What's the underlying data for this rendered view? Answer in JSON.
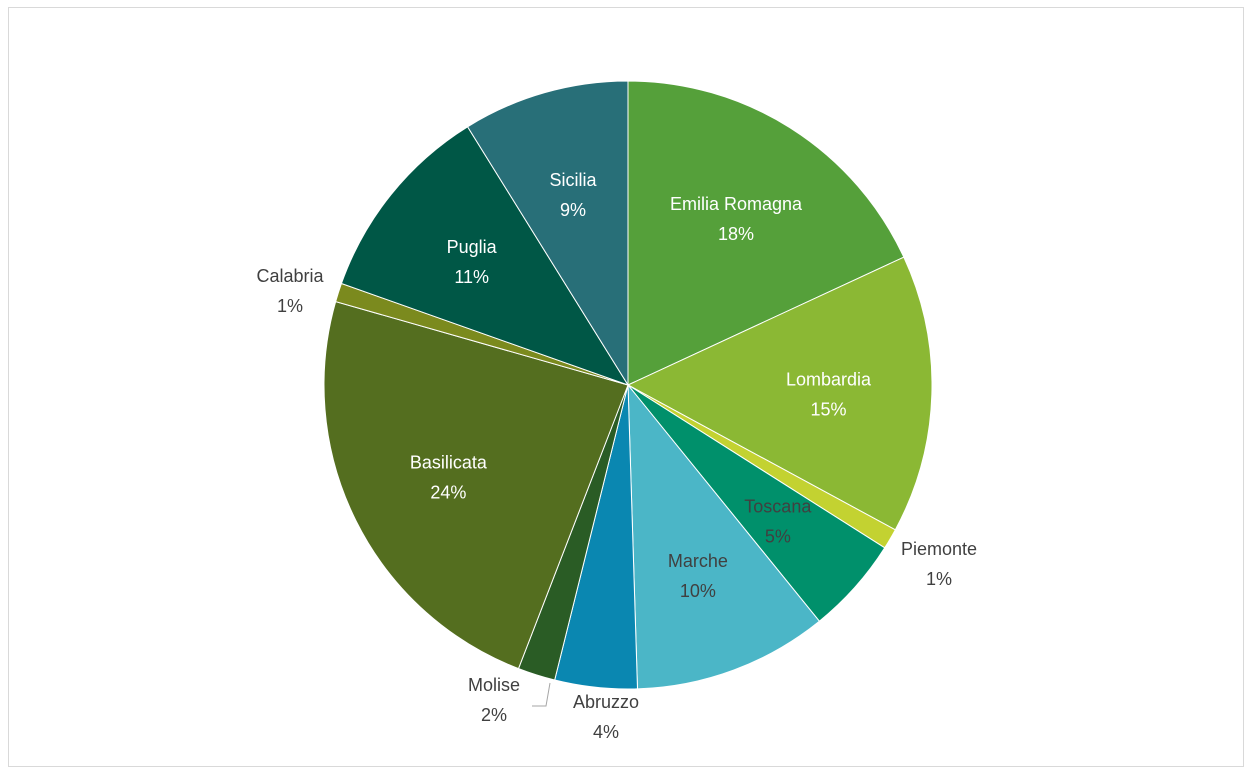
{
  "chart_data": {
    "type": "pie",
    "title": "",
    "start_angle_deg": 0,
    "direction": "clockwise",
    "slices": [
      {
        "label": "Emilia Romagna",
        "percent_label": "18%",
        "value": 18.2,
        "color": "#55a03a",
        "label_color": "#ffffff",
        "label_position": "inside"
      },
      {
        "label": "Lombardia",
        "percent_label": "15%",
        "value": 14.9,
        "color": "#8bb834",
        "label_color": "#ffffff",
        "label_position": "inside"
      },
      {
        "label": "Piemonte",
        "percent_label": "1%",
        "value": 1.1,
        "color": "#c3d231",
        "label_color": "#404040",
        "label_position": "outside"
      },
      {
        "label": "Toscana",
        "percent_label": "5%",
        "value": 5.2,
        "color": "#00906b",
        "label_color": "#404040",
        "label_position": "inside"
      },
      {
        "label": "Marche",
        "percent_label": "10%",
        "value": 10.4,
        "color": "#4bb6c7",
        "label_color": "#404040",
        "label_position": "inside"
      },
      {
        "label": "Abruzzo",
        "percent_label": "4%",
        "value": 4.4,
        "color": "#0a87b1",
        "label_color": "#404040",
        "label_position": "outside"
      },
      {
        "label": "Molise",
        "percent_label": "2%",
        "value": 2.0,
        "color": "#2a5c25",
        "label_color": "#404040",
        "label_position": "outside"
      },
      {
        "label": "Basilicata",
        "percent_label": "24%",
        "value": 23.7,
        "color": "#546e1f",
        "label_color": "#ffffff",
        "label_position": "inside"
      },
      {
        "label": "Calabria",
        "percent_label": "1%",
        "value": 1.0,
        "color": "#7b8a1e",
        "label_color": "#404040",
        "label_position": "outside"
      },
      {
        "label": "Puglia",
        "percent_label": "11%",
        "value": 10.8,
        "color": "#005746",
        "label_color": "#ffffff",
        "label_position": "inside"
      },
      {
        "label": "Sicilia",
        "percent_label": "9%",
        "value": 8.9,
        "color": "#286f78",
        "label_color": "#ffffff",
        "label_position": "inside"
      }
    ]
  }
}
